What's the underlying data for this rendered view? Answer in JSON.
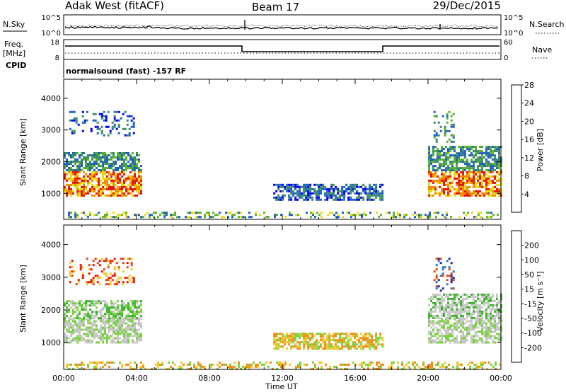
{
  "header": {
    "station": "Adak West (fitACF)",
    "beam": "Beam 17",
    "date": "29/Dec/2015"
  },
  "params": {
    "nsky_label": "N.Sky",
    "nsky_ticks": [
      "10^5",
      "10^0"
    ],
    "nsearch_label": "N.Search",
    "nsearch_ticks": [
      "10^5",
      "10^0"
    ],
    "freq_label_line1": "Freq.",
    "freq_label_line2": "[MHz]",
    "freq_ticks": [
      "18",
      "8"
    ],
    "nave_label": "Nave",
    "nave_ticks": [
      "60",
      "0"
    ],
    "cpid_label": "CPID",
    "cpid_text": "normalsound (fast) -157 RF"
  },
  "chart_data": [
    {
      "type": "heatmap",
      "name": "power",
      "ylabel": "Slant Range [km]",
      "yticks": [
        1000,
        2000,
        3000,
        4000
      ],
      "ylim": [
        180,
        4600
      ],
      "xlim": [
        0,
        24
      ],
      "xtick_labels": [
        "00:00",
        "04:00",
        "08:00",
        "12:00",
        "16:00",
        "20:00",
        "00:00"
      ],
      "colorbar": {
        "label": "Power [dB]",
        "ticks": [
          "4",
          "8",
          "12",
          "16",
          "20",
          "24",
          "28"
        ],
        "colors": [
          "#0000ff",
          "#2060c0",
          "#3c8c64",
          "#5ab428",
          "#e6dc14",
          "#f08c00",
          "#e61400"
        ]
      },
      "regions": [
        {
          "x": [
            0.0,
            4.2
          ],
          "y": [
            950,
            1700
          ],
          "levels": [
            4,
            5,
            6
          ]
        },
        {
          "x": [
            0.0,
            4.2
          ],
          "y": [
            1700,
            2300
          ],
          "levels": [
            1,
            2,
            3
          ]
        },
        {
          "x": [
            0.3,
            3.8
          ],
          "y": [
            2800,
            3600
          ],
          "levels": [
            0,
            1,
            2
          ]
        },
        {
          "x": [
            11.5,
            17.5
          ],
          "y": [
            800,
            1300
          ],
          "levels": [
            0,
            1,
            2
          ]
        },
        {
          "x": [
            20.0,
            24.0
          ],
          "y": [
            950,
            1700
          ],
          "levels": [
            4,
            5,
            6
          ]
        },
        {
          "x": [
            20.0,
            24.0
          ],
          "y": [
            1700,
            2500
          ],
          "levels": [
            1,
            2,
            3
          ]
        },
        {
          "x": [
            20.3,
            21.4
          ],
          "y": [
            2600,
            3600
          ],
          "levels": [
            1,
            2,
            3
          ]
        },
        {
          "x": [
            0.0,
            24.0
          ],
          "y": [
            220,
            420
          ],
          "levels": [
            1,
            3,
            4
          ]
        }
      ]
    },
    {
      "type": "heatmap",
      "name": "velocity",
      "ylabel": "Slant Range [km]",
      "yticks": [
        1000,
        2000,
        3000,
        4000
      ],
      "ylim": [
        180,
        4600
      ],
      "xlim": [
        0,
        24
      ],
      "xlabel": "Time UT",
      "xtick_labels": [
        "00:00",
        "04:00",
        "08:00",
        "12:00",
        "16:00",
        "20:00",
        "00:00"
      ],
      "colorbar": {
        "label": "Velocity [m s⁻¹]",
        "ticks": [
          "200",
          "100",
          "50",
          "15",
          "-15",
          "-50",
          "-100",
          "-200"
        ],
        "colors": [
          "#1c2ab4",
          "#2a7ac8",
          "#3cb428",
          "#7ad23c",
          "#c8c8c8",
          "#f0c828",
          "#f08c14",
          "#e64614",
          "#e61400"
        ]
      },
      "regions": [
        {
          "x": [
            0.0,
            4.2
          ],
          "y": [
            1000,
            1750
          ],
          "levels": [
            4,
            4,
            3
          ]
        },
        {
          "x": [
            0.0,
            4.2
          ],
          "y": [
            1750,
            2300
          ],
          "levels": [
            4,
            3,
            2
          ]
        },
        {
          "x": [
            0.3,
            3.8
          ],
          "y": [
            2800,
            3600
          ],
          "levels": [
            5,
            7,
            8
          ]
        },
        {
          "x": [
            11.5,
            17.5
          ],
          "y": [
            800,
            1300
          ],
          "levels": [
            5,
            6,
            3
          ]
        },
        {
          "x": [
            20.0,
            24.0
          ],
          "y": [
            1000,
            1750
          ],
          "levels": [
            4,
            4,
            3
          ]
        },
        {
          "x": [
            20.0,
            24.0
          ],
          "y": [
            1750,
            2500
          ],
          "levels": [
            4,
            4,
            2
          ]
        },
        {
          "x": [
            20.3,
            21.4
          ],
          "y": [
            2600,
            3600
          ],
          "levels": [
            0,
            1,
            7
          ]
        },
        {
          "x": [
            0.0,
            24.0
          ],
          "y": [
            220,
            420
          ],
          "levels": [
            3,
            5,
            6
          ]
        }
      ]
    }
  ]
}
